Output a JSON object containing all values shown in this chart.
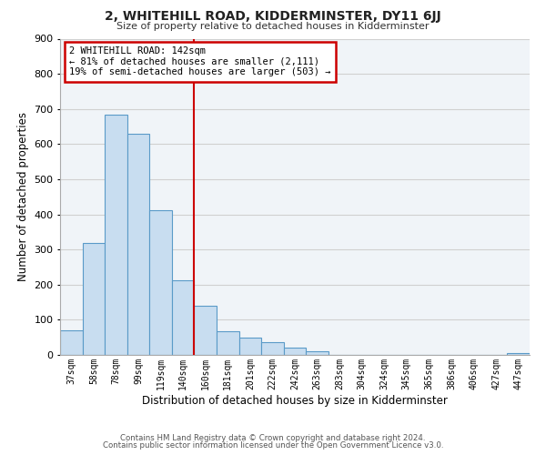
{
  "title": "2, WHITEHILL ROAD, KIDDERMINSTER, DY11 6JJ",
  "subtitle": "Size of property relative to detached houses in Kidderminster",
  "xlabel": "Distribution of detached houses by size in Kidderminster",
  "ylabel": "Number of detached properties",
  "footer_line1": "Contains HM Land Registry data © Crown copyright and database right 2024.",
  "footer_line2": "Contains public sector information licensed under the Open Government Licence v3.0.",
  "bar_labels": [
    "37sqm",
    "58sqm",
    "78sqm",
    "99sqm",
    "119sqm",
    "140sqm",
    "160sqm",
    "181sqm",
    "201sqm",
    "222sqm",
    "242sqm",
    "263sqm",
    "283sqm",
    "304sqm",
    "324sqm",
    "345sqm",
    "365sqm",
    "386sqm",
    "406sqm",
    "427sqm",
    "447sqm"
  ],
  "bar_values": [
    70,
    318,
    683,
    630,
    413,
    213,
    140,
    68,
    48,
    36,
    22,
    10,
    0,
    0,
    0,
    0,
    0,
    0,
    0,
    0,
    5
  ],
  "bar_color": "#c8ddf0",
  "bar_edge_color": "#5a9ac8",
  "grid_color": "#d0d0d0",
  "ylim": [
    0,
    900
  ],
  "yticks": [
    0,
    100,
    200,
    300,
    400,
    500,
    600,
    700,
    800,
    900
  ],
  "annotation_title": "2 WHITEHILL ROAD: 142sqm",
  "annotation_line1": "← 81% of detached houses are smaller (2,111)",
  "annotation_line2": "19% of semi-detached houses are larger (503) →",
  "annotation_box_color": "#ffffff",
  "annotation_border_color": "#cc0000",
  "red_line_color": "#cc0000",
  "background_color": "#ffffff",
  "plot_background_color": "#f0f4f8"
}
